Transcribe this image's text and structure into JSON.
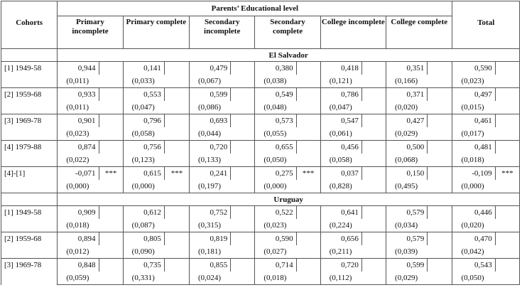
{
  "table": {
    "header": {
      "cohorts": "Cohorts",
      "group": "Parents’ Educational level",
      "columns": [
        "Primary incomplete",
        "Primary complete",
        "Secondary incomplete",
        "Secondary complete",
        "College incomplete",
        "College complete"
      ],
      "total": "Total"
    },
    "sections": [
      {
        "name": "El Salvador",
        "rows": [
          {
            "label": "[1] 1949-58",
            "values": [
              "0,944",
              "0,141",
              "0,479",
              "0,380",
              "0,418",
              "0,351",
              "0,590"
            ],
            "stars": [
              null,
              null,
              null,
              null,
              null,
              null,
              null
            ],
            "se": [
              "(0,011)",
              "(0,033)",
              "(0,067)",
              "(0,038)",
              "(0,121)",
              "(0,166)",
              "(0,023)"
            ]
          },
          {
            "label": "[2] 1959-68",
            "values": [
              "0,933",
              "0,553",
              "0,599",
              "0,549",
              "0,786",
              "0,371",
              "0,497"
            ],
            "stars": [
              null,
              null,
              null,
              null,
              null,
              null,
              null
            ],
            "se": [
              "(0,011)",
              "(0,047)",
              "(0,086)",
              "(0,048)",
              "(0,047)",
              "(0,020)",
              "(0,015)"
            ]
          },
          {
            "label": "[3] 1969-78",
            "values": [
              "0,901",
              "0,796",
              "0,693",
              "0,573",
              "0,547",
              "0,427",
              "0,461"
            ],
            "stars": [
              null,
              null,
              null,
              null,
              null,
              null,
              null
            ],
            "se": [
              "(0,023)",
              "(0,058)",
              "(0,044)",
              "(0,055)",
              "(0,061)",
              "(0,029)",
              "(0,017)"
            ]
          },
          {
            "label": "[4] 1979-88",
            "values": [
              "0,874",
              "0,756",
              "0,720",
              "0,655",
              "0,456",
              "0,500",
              "0,481"
            ],
            "stars": [
              null,
              null,
              null,
              null,
              null,
              null,
              null
            ],
            "se": [
              "(0,022)",
              "(0,123)",
              "(0,133)",
              "(0,050)",
              "(0,058)",
              "(0,068)",
              "(0,018)"
            ]
          },
          {
            "label": "[4]-[1]",
            "values": [
              "-0,071",
              "0,615",
              "0,241",
              "0,275",
              "0,037",
              "0,150",
              "-0,109"
            ],
            "stars": [
              "***",
              "***",
              null,
              "***",
              null,
              null,
              "***"
            ],
            "se": [
              "(0,000)",
              "(0,000)",
              "(0,197)",
              "(0,000)",
              "(0,828)",
              "(0,495)",
              "(0,000)"
            ]
          }
        ]
      },
      {
        "name": "Uruguay",
        "rows": [
          {
            "label": "[1] 1949-58",
            "values": [
              "0,909",
              "0,612",
              "0,752",
              "0,522",
              "0,641",
              "0,579",
              "0,446"
            ],
            "stars": [
              null,
              null,
              null,
              null,
              null,
              null,
              null
            ],
            "se": [
              "(0,018)",
              "(0,087)",
              "(0,315)",
              "(0,023)",
              "(0,224)",
              "(0,034)",
              "(0,020)"
            ]
          },
          {
            "label": "[2] 1959-68",
            "values": [
              "0,894",
              "0,805",
              "0,819",
              "0,590",
              "0,656",
              "0,579",
              "0,470"
            ],
            "stars": [
              null,
              null,
              null,
              null,
              null,
              null,
              null
            ],
            "se": [
              "(0,012)",
              "(0,090)",
              "(0,181)",
              "(0,027)",
              "(0,211)",
              "(0,039)",
              "(0,042)"
            ]
          },
          {
            "label": "[3] 1969-78",
            "values": [
              "0,848",
              "0,735",
              "0,855",
              "0,714",
              "0,720",
              "0,599",
              "0,543"
            ],
            "stars": [
              null,
              null,
              null,
              null,
              null,
              null,
              null
            ],
            "se": [
              "(0,059)",
              "(0,331)",
              "(0,024)",
              "(0,018)",
              "(0,112)",
              "(0,029)",
              "(0,050)"
            ]
          }
        ]
      }
    ]
  }
}
